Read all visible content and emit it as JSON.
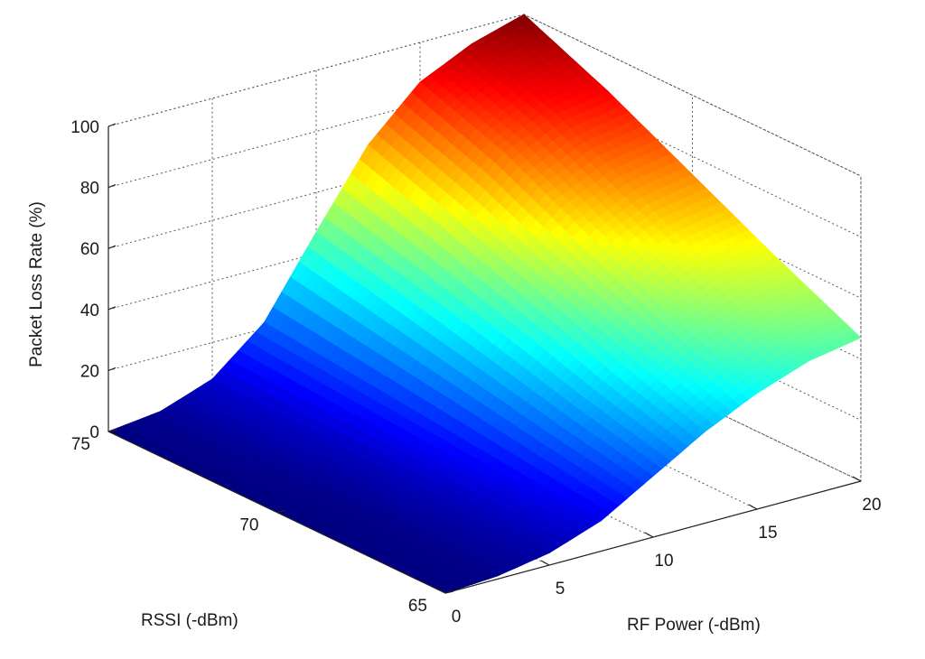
{
  "chart_data": {
    "type": "surface",
    "title": "",
    "zlabel": "Packet Loss Rate (%)",
    "ylabel": "RSSI (-dBm)",
    "xlabel": "RF Power (-dBm)",
    "x_ticks": [
      "0",
      "5",
      "10",
      "15",
      "20"
    ],
    "y_ticks": [
      "75",
      "70",
      "65"
    ],
    "z_ticks": [
      "0",
      "20",
      "40",
      "60",
      "80",
      "100"
    ],
    "xlim": [
      0,
      20
    ],
    "ylim": [
      65,
      75
    ],
    "zlim": [
      0,
      100
    ],
    "grid": true,
    "colormap": "jet",
    "rf_power": [
      0,
      2.5,
      5,
      7.5,
      10,
      12.5,
      15,
      17.5,
      20
    ],
    "rssi": [
      65,
      67.5,
      70,
      72.5,
      75
    ],
    "packet_loss": [
      [
        0,
        0,
        0,
        0,
        0
      ],
      [
        1,
        1,
        1,
        2,
        2
      ],
      [
        4,
        5,
        6,
        7,
        8
      ],
      [
        10,
        13,
        16,
        19,
        22
      ],
      [
        20,
        26,
        33,
        40,
        47
      ],
      [
        30,
        39,
        50,
        61,
        71
      ],
      [
        38,
        50,
        63,
        77,
        87
      ],
      [
        44,
        57,
        71,
        85,
        95
      ],
      [
        47,
        60,
        74,
        88,
        100
      ]
    ]
  }
}
